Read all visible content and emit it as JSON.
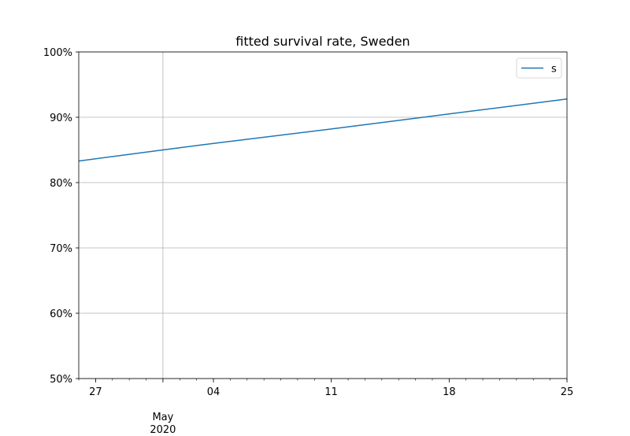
{
  "chart_data": {
    "type": "line",
    "title": "fitted survival rate, Sweden",
    "xlabel": "",
    "ylabel": "",
    "x_axis": {
      "type": "date",
      "range": [
        "2020-04-26",
        "2020-05-25"
      ],
      "major_ticks": [
        {
          "date": "2020-04-27",
          "label": "27",
          "sublabel": ""
        },
        {
          "date": "2020-05-01",
          "label": "",
          "sublabel": "May\n2020"
        },
        {
          "date": "2020-05-04",
          "label": "04",
          "sublabel": ""
        },
        {
          "date": "2020-05-11",
          "label": "11",
          "sublabel": ""
        },
        {
          "date": "2020-05-18",
          "label": "18",
          "sublabel": ""
        },
        {
          "date": "2020-05-25",
          "label": "25",
          "sublabel": ""
        }
      ],
      "minor_ticks_daily": true,
      "grid": [
        "2020-05-01"
      ]
    },
    "y_axis": {
      "format": "percent",
      "ylim": [
        0.5,
        1.0
      ],
      "ticks": [
        0.5,
        0.6,
        0.7,
        0.8,
        0.9,
        1.0
      ],
      "tick_labels": [
        "50%",
        "60%",
        "70%",
        "80%",
        "90%",
        "100%"
      ],
      "grid": true
    },
    "series": [
      {
        "name": "s",
        "color": "#1f77b4",
        "x": [
          "2020-04-26",
          "2020-05-01",
          "2020-05-04",
          "2020-05-11",
          "2020-05-18",
          "2020-05-25"
        ],
        "y": [
          0.833,
          0.85,
          0.86,
          0.882,
          0.905,
          0.928
        ]
      }
    ],
    "legend": {
      "position": "top-right",
      "entries": [
        "s"
      ]
    }
  }
}
